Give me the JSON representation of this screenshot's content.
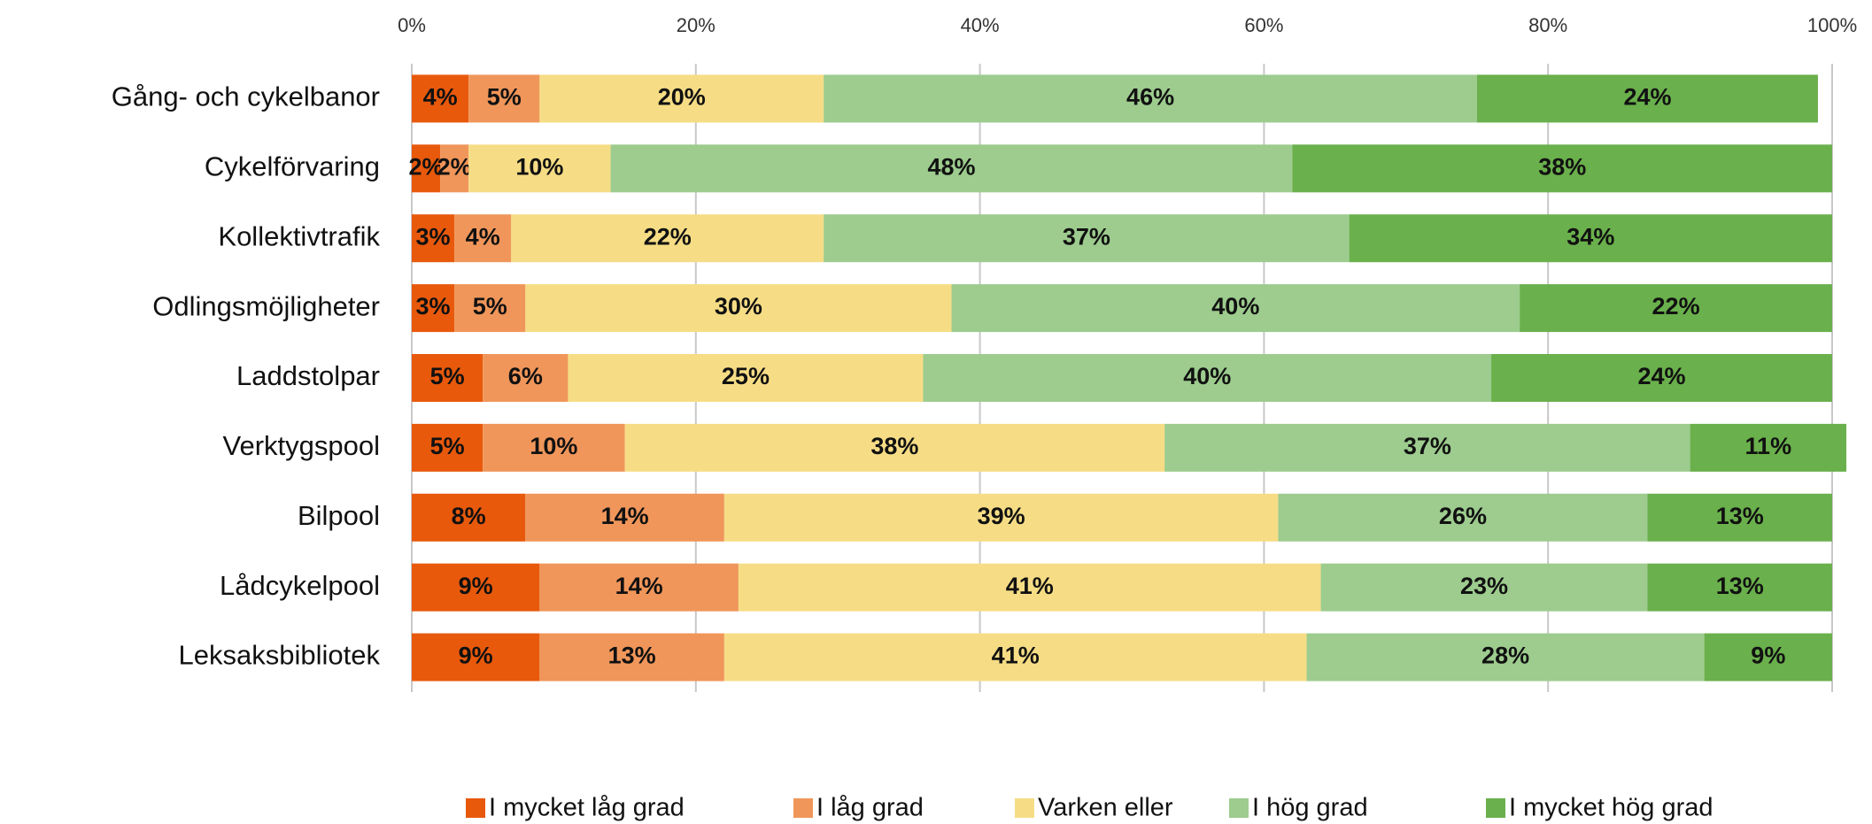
{
  "chart_data": {
    "type": "stacked-barh",
    "categories": [
      "Gång- och cykelbanor",
      "Cykelförvaring",
      "Kollektivtrafik",
      "Odlingsmöjligheter",
      "Laddstolpar",
      "Verktygspool",
      "Bilpool",
      "Lådcykelpool",
      "Leksaksbibliotek"
    ],
    "series": [
      {
        "name": "I mycket låg grad",
        "color": "#e8590c",
        "values": [
          4,
          2,
          3,
          3,
          5,
          5,
          8,
          9,
          9
        ],
        "value_labels": [
          "4%",
          "2%",
          "3%",
          "3%",
          "5%",
          "5%",
          "8%",
          "9%",
          "9%"
        ]
      },
      {
        "name": "I låg grad",
        "color": "#f0965a",
        "values": [
          5,
          2,
          4,
          5,
          6,
          10,
          14,
          14,
          13
        ],
        "value_labels": [
          "5%",
          "2%",
          "4%",
          "5%",
          "6%",
          "10%",
          "14%",
          "14%",
          "13%"
        ]
      },
      {
        "name": "Varken eller",
        "color": "#f6dd85",
        "values": [
          20,
          10,
          22,
          30,
          25,
          38,
          39,
          41,
          41
        ],
        "value_labels": [
          "20%",
          "10%",
          "22%",
          "30%",
          "25%",
          "38%",
          "39%",
          "41%",
          "41%"
        ]
      },
      {
        "name": "I hög grad",
        "color": "#9dcc8e",
        "values": [
          46,
          48,
          37,
          40,
          40,
          37,
          26,
          23,
          28
        ],
        "value_labels": [
          "46%",
          "48%",
          "37%",
          "40%",
          "40%",
          "37%",
          "26%",
          "23%",
          "28%"
        ]
      },
      {
        "name": "I mycket hög grad",
        "color": "#6ab04c",
        "values": [
          24,
          38,
          34,
          22,
          24,
          11,
          13,
          13,
          9
        ],
        "value_labels": [
          "24%",
          "38%",
          "34%",
          "22%",
          "24%",
          "11%",
          "13%",
          "13%",
          "9%"
        ]
      }
    ],
    "xlim": [
      0,
      100
    ],
    "xticks": [
      {
        "value": 0,
        "label": "0%"
      },
      {
        "value": 20,
        "label": "20%"
      },
      {
        "value": 40,
        "label": "40%"
      },
      {
        "value": 60,
        "label": "60%"
      },
      {
        "value": 80,
        "label": "80%"
      },
      {
        "value": 100,
        "label": "100%"
      }
    ],
    "grid": true
  }
}
